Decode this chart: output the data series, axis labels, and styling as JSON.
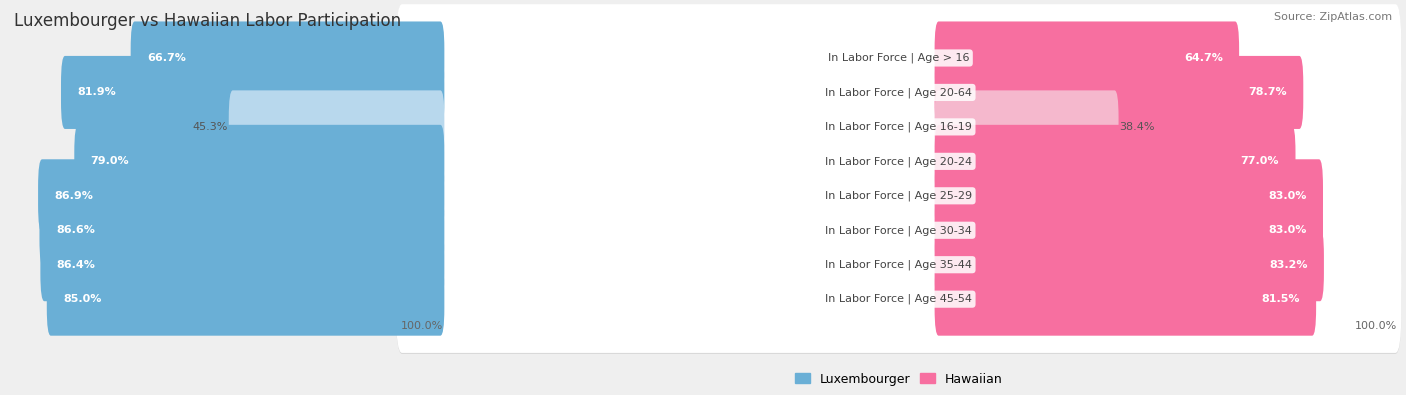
{
  "title": "Luxembourger vs Hawaiian Labor Participation",
  "source": "Source: ZipAtlas.com",
  "categories": [
    "In Labor Force | Age > 16",
    "In Labor Force | Age 20-64",
    "In Labor Force | Age 16-19",
    "In Labor Force | Age 20-24",
    "In Labor Force | Age 25-29",
    "In Labor Force | Age 30-34",
    "In Labor Force | Age 35-44",
    "In Labor Force | Age 45-54"
  ],
  "luxembourger_values": [
    66.7,
    81.9,
    45.3,
    79.0,
    86.9,
    86.6,
    86.4,
    85.0
  ],
  "hawaiian_values": [
    64.7,
    78.7,
    38.4,
    77.0,
    83.0,
    83.0,
    83.2,
    81.5
  ],
  "luxembourger_color_full": "#6aafd6",
  "luxembourger_color_light": "#b8d8ed",
  "hawaiian_color_full": "#f76fa0",
  "hawaiian_color_light": "#f5b8cd",
  "bg_color": "#efefef",
  "row_bg_color": "#ffffff",
  "row_bg_shadow": "#d8d8d8",
  "max_value": 100.0,
  "title_fontsize": 12,
  "label_fontsize": 8,
  "value_fontsize": 8,
  "legend_fontsize": 9,
  "footer_label": "100.0%",
  "light_row_index": 2
}
